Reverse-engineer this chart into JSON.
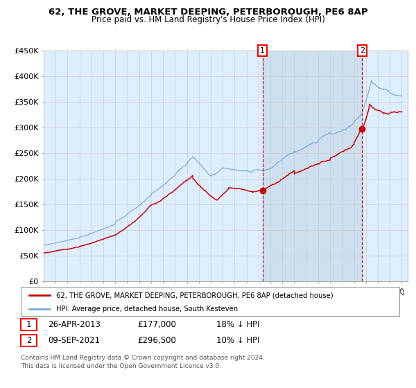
{
  "title": "62, THE GROVE, MARKET DEEPING, PETERBOROUGH, PE6 8AP",
  "subtitle": "Price paid vs. HM Land Registry's House Price Index (HPI)",
  "legend_line1": "62, THE GROVE, MARKET DEEPING, PETERBOROUGH, PE6 8AP (detached house)",
  "legend_line2": "HPI: Average price, detached house, South Kesteven",
  "annotation1_date": "26-APR-2013",
  "annotation1_price": "£177,000",
  "annotation1_hpi": "18% ↓ HPI",
  "annotation2_date": "09-SEP-2021",
  "annotation2_price": "£296,500",
  "annotation2_hpi": "10% ↓ HPI",
  "footer": "Contains HM Land Registry data © Crown copyright and database right 2024.\nThis data is licensed under the Open Government Licence v3.0.",
  "ylim": [
    0,
    450000
  ],
  "yticks": [
    0,
    50000,
    100000,
    150000,
    200000,
    250000,
    300000,
    350000,
    400000,
    450000
  ],
  "bg_color": "#ddeeff",
  "bg_between_color": "#cce0f0",
  "hpi_color": "#7aadd4",
  "price_color": "#cc0000",
  "marker_color": "#cc0000",
  "vline_color": "#cc0000",
  "grid_color": "#cccccc",
  "sale1_x": 2013.33,
  "sale1_y": 177000,
  "sale2_x": 2021.69,
  "sale2_y": 296500,
  "xmin": 1995,
  "xmax": 2025.5
}
